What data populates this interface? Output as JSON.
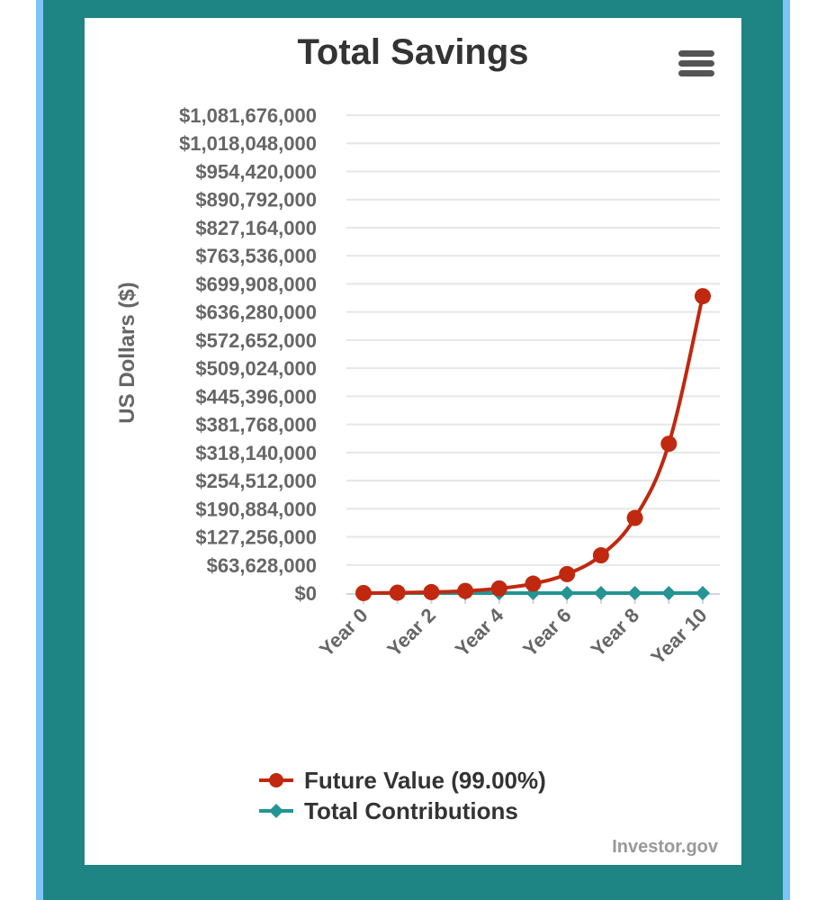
{
  "colors": {
    "frame_outer": "#7ec3f5",
    "frame_inner": "#1f8484",
    "future_value": "#c0280f",
    "contributions": "#249494",
    "grid": "#e6e6e6",
    "tick_text": "#666666"
  },
  "menu": {
    "icon": "hamburger-menu-icon"
  },
  "credit": "Investor.gov",
  "chart_data": {
    "type": "line",
    "title": "Total Savings",
    "xlabel": "",
    "ylabel": "US Dollars ($)",
    "categories": [
      "Year 0",
      "Year 1",
      "Year 2",
      "Year 3",
      "Year 4",
      "Year 5",
      "Year 6",
      "Year 7",
      "Year 8",
      "Year 9",
      "Year 10"
    ],
    "x_tick_labels": [
      "Year 0",
      "Year 2",
      "Year 4",
      "Year 6",
      "Year 8",
      "Year 10"
    ],
    "y_tick_labels": [
      "$0",
      "$63,628,000",
      "$127,256,000",
      "$190,884,000",
      "$254,512,000",
      "$318,140,000",
      "$381,768,000",
      "$445,396,000",
      "$509,024,000",
      "$572,652,000",
      "$636,280,000",
      "$699,908,000",
      "$763,536,000",
      "$827,164,000",
      "$890,792,000",
      "$954,420,000",
      "$1,018,048,000",
      "$1,081,676,000"
    ],
    "ylim": [
      0,
      1081676000
    ],
    "ytick_step": 63628000,
    "grid": true,
    "legend_position": "bottom",
    "series": [
      {
        "name": "Future Value (99.00%)",
        "marker": "circle",
        "values": [
          100000,
          900000,
          2200000,
          4900000,
          10500000,
          21300000,
          43000000,
          85500000,
          170000000,
          338000000,
          672000000
        ]
      },
      {
        "name": "Total Contributions",
        "marker": "diamond",
        "values": [
          0,
          0,
          0,
          0,
          0,
          0,
          0,
          0,
          0,
          0,
          0
        ]
      }
    ]
  }
}
